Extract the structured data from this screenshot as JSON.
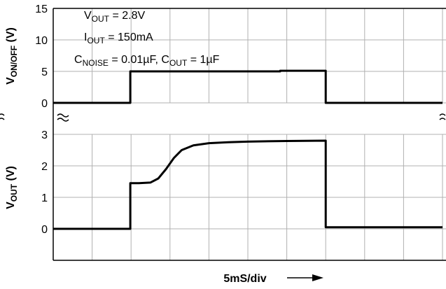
{
  "chart_data": [
    {
      "type": "line",
      "ylabel": [
        "V",
        "ON/OFF",
        " (V)"
      ],
      "annotations": [
        [
          "V",
          "OUT",
          " = 2.8V"
        ],
        [
          "I",
          "OUT",
          " = 150mA"
        ],
        [
          "C",
          "NOISE",
          " = 0.01µF, C",
          "OUT",
          " = 1µF"
        ]
      ],
      "xlim": [
        0,
        10
      ],
      "xticks": [
        0,
        1,
        2,
        3,
        4,
        5,
        6,
        7,
        8,
        9,
        10
      ],
      "ylim": [
        0,
        15
      ],
      "yticks": [
        0,
        5,
        10,
        15
      ],
      "grid": true,
      "x": [
        0,
        1.98,
        1.98,
        5.83,
        5.83,
        7.0,
        7.0,
        10
      ],
      "series": [
        {
          "color": "#000000",
          "values": [
            0,
            0,
            5,
            5,
            5.1,
            5.1,
            0,
            0
          ]
        }
      ]
    },
    {
      "type": "line",
      "ylabel": [
        "V",
        "OUT",
        " (V)"
      ],
      "xlabel": "5mS/div",
      "xlim": [
        0,
        10
      ],
      "xticks": [
        0,
        1,
        2,
        3,
        4,
        5,
        6,
        7,
        8,
        9,
        10
      ],
      "ylim": [
        -1,
        3
      ],
      "yticks": [
        0,
        1,
        2,
        3
      ],
      "grid": true,
      "x": [
        0,
        1.98,
        1.98,
        2.2,
        2.5,
        2.7,
        2.9,
        3.1,
        3.3,
        3.6,
        4.0,
        4.5,
        5.0,
        6.0,
        7.0,
        7.0,
        10
      ],
      "series": [
        {
          "color": "#000000",
          "values": [
            0,
            0,
            1.45,
            1.45,
            1.47,
            1.6,
            1.9,
            2.25,
            2.5,
            2.65,
            2.72,
            2.75,
            2.77,
            2.79,
            2.8,
            0.05,
            0.05
          ]
        }
      ]
    }
  ]
}
